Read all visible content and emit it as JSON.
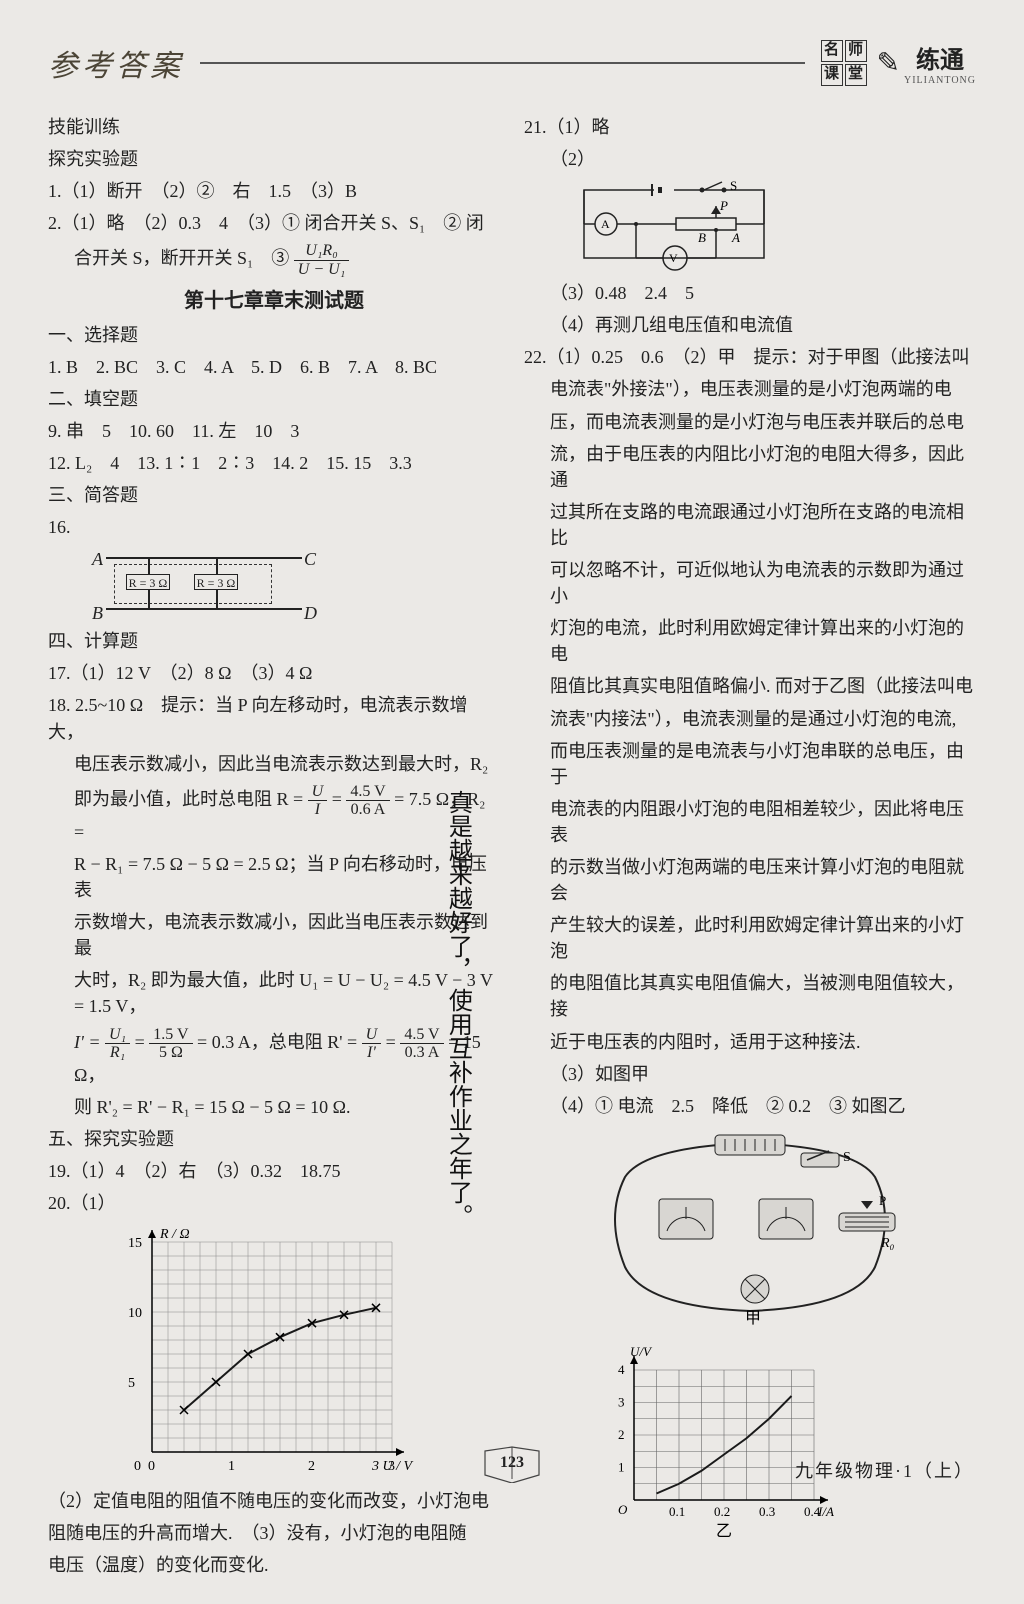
{
  "header": {
    "title": "参考答案",
    "logo_cells": [
      "名",
      "师",
      "课",
      "堂"
    ],
    "liantong_ch": "练通",
    "liantong_py": "YILIANTONG"
  },
  "col_left": {
    "skill_title": "技能训练",
    "explore_title": "探究实验题",
    "q1": "1.（1）断开　（2）②　右　1.5　（3）B",
    "q2a": "2.（1）略　（2）0.3　4　（3）① 闭合开关 S、S₁　② 闭",
    "q2b": "合开关 S，断开开关 S₁　③ ",
    "q2_frac_num": "U₁R₀",
    "q2_frac_den": "U − U₁",
    "chapter_title": "第十七章章末测试题",
    "sec1_title": "一、选择题",
    "sec1_ans": "1. B　2. BC　3. C　4. A　5. D　6. B　7. A　8. BC",
    "sec2_title": "二、填空题",
    "sec2_l1": "9. 串　5　10. 60　11. 左　10　3",
    "sec2_l2": "12. L₂　4　13. 1∶1　2∶3　14. 2　15. 15　3.3",
    "sec3_title": "三、简答题",
    "q16_label": "16.",
    "circuit16": {
      "labels": {
        "A": "A",
        "B": "B",
        "C": "C",
        "D": "D"
      },
      "r_text": "R = 3 Ω"
    },
    "sec4_title": "四、计算题",
    "q17": "17.（1）12 V　（2）8 Ω　（3）4 Ω",
    "q18_l1": "18. 2.5~10 Ω　提示：当 P 向左移动时，电流表示数增大，",
    "q18_l2": "电压表示数减小，因此当电流表示数达到最大时，R₂",
    "q18_l3a": "即为最小值，此时总电阻 R = ",
    "q18_f1_num": "U",
    "q18_f1_den": "I",
    "q18_l3b": " = ",
    "q18_f2_num": "4.5 V",
    "q18_f2_den": "0.6 A",
    "q18_l3c": " = 7.5 Ω，R₂ = ",
    "q18_l4": "R − R₁ = 7.5 Ω − 5 Ω = 2.5 Ω；当 P 向右移动时，电压表",
    "q18_l5": "示数增大，电流表示数减小，因此当电压表示数达到最",
    "q18_l6": "大时，R₂ 即为最大值，此时 U₁ = U − U₂ = 4.5 V − 3 V = 1.5 V，",
    "q18_l7a": "I' = ",
    "q18_f3_num": "U₁",
    "q18_f3_den": "R₁",
    "q18_l7b": " = ",
    "q18_f4_num": "1.5 V",
    "q18_f4_den": "5 Ω",
    "q18_l7c": " = 0.3 A，总电阻 R' = ",
    "q18_f5_num": "U",
    "q18_f5_den": "I'",
    "q18_l7d": " = ",
    "q18_f6_num": "4.5 V",
    "q18_f6_den": "0.3 A",
    "q18_l7e": " = 15 Ω，",
    "q18_l8": "则 R'₂ = R' − R₁ = 15 Ω − 5 Ω = 10 Ω.",
    "sec5_title": "五、探究实验题",
    "q19": "19.（1）4　（2）右　（3）0.32　18.75",
    "q20_label": "20.（1）",
    "chart20": {
      "type": "line",
      "y_axis_label": "R / Ω",
      "x_axis_label": "U / V",
      "xlim": [
        0,
        3
      ],
      "ylim": [
        0,
        15
      ],
      "xticks": [
        0,
        1,
        2,
        3
      ],
      "yticks": [
        0,
        5,
        10,
        15
      ],
      "grid_minor_x": 15,
      "grid_minor_y": 15,
      "grid_color": "#888",
      "curve_color": "#1a1a1a",
      "curve_width": 2,
      "marker": "x",
      "points": [
        [
          0.4,
          3
        ],
        [
          0.8,
          5
        ],
        [
          1.2,
          7
        ],
        [
          1.6,
          8.2
        ],
        [
          2.0,
          9.2
        ],
        [
          2.4,
          9.8
        ],
        [
          2.8,
          10.3
        ]
      ]
    },
    "q20_2": "（2）定值电阻的阻值不随电压的变化而改变，小灯泡电",
    "q20_2b": "阻随电压的升高而增大.　（3）没有，小灯泡的电阻随",
    "q20_2c": "电压（温度）的变化而变化."
  },
  "col_right": {
    "q21_label": "21.（1）略",
    "q21_2": "（2）",
    "circuit21": {
      "labels": {
        "S": "S",
        "A": "A",
        "V": "V",
        "P": "P",
        "B": "B",
        "A2": "A"
      }
    },
    "q21_3": "（3）0.48　2.4　5",
    "q21_4": "（4）再测几组电压值和电流值",
    "q22_l1": "22.（1）0.25　0.6　（2）甲　提示：对于甲图（此接法叫",
    "q22_l2": "电流表\"外接法\"），电压表测量的是小灯泡两端的电",
    "q22_l3": "压，而电流表测量的是小灯泡与电压表并联后的总电",
    "q22_l4": "流，由于电压表的内阻比小灯泡的电阻大得多，因此通",
    "q22_l5": "过其所在支路的电流跟通过小灯泡所在支路的电流相比",
    "q22_l6": "可以忽略不计，可近似地认为电流表的示数即为通过小",
    "q22_l7": "灯泡的电流，此时利用欧姆定律计算出来的小灯泡的电",
    "q22_l8": "阻值比其真实电阻值略偏小. 而对于乙图（此接法叫电",
    "q22_l9": "流表\"内接法\"），电流表测量的是通过小灯泡的电流,",
    "q22_l10": "而电压表测量的是电流表与小灯泡串联的总电压，由于",
    "q22_l11": "电流表的内阻跟小灯泡的电阻相差较少，因此将电压表",
    "q22_l12": "的示数当做小灯泡两端的电压来计算小灯泡的电阻就会",
    "q22_l13": "产生较大的误差，此时利用欧姆定律计算出来的小灯泡",
    "q22_l14": "的电阻值比其真实电阻值偏大，当被测电阻值较大，接",
    "q22_l15": "近于电压表的内阻时，适用于这种接法.",
    "q22_3": "（3）如图甲",
    "q22_4": "（4）① 电流　2.5　降低　② 0.2　③ 如图乙",
    "fig22a_labels": {
      "S": "S",
      "P": "P",
      "R": "R₀",
      "cap": "甲"
    },
    "chart22b": {
      "type": "line",
      "y_axis_label": "U/V",
      "x_axis_label": "I/A",
      "xlim": [
        0,
        0.4
      ],
      "ylim": [
        0,
        4
      ],
      "xticks": [
        "0.1",
        "0.2",
        "0.3",
        "0.4"
      ],
      "yticks": [
        1,
        2,
        3,
        4
      ],
      "grid_color": "#666",
      "curve_color": "#1a1a1a",
      "curve_width": 2,
      "points": [
        [
          0.05,
          0.2
        ],
        [
          0.1,
          0.5
        ],
        [
          0.15,
          0.9
        ],
        [
          0.2,
          1.4
        ],
        [
          0.25,
          1.9
        ],
        [
          0.3,
          2.5
        ],
        [
          0.35,
          3.2
        ]
      ],
      "caption": "乙"
    }
  },
  "handwrite": {
    "line1": "真是越来越好了，",
    "line2": "使用互补作业之年了。"
  },
  "footer": {
    "page_num": "123",
    "book_label": "九年级物理·1（上）"
  }
}
